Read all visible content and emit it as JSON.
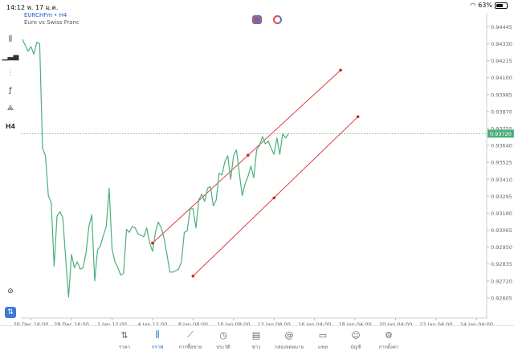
{
  "status_bar": {
    "time": "14:12",
    "date": "พ. 17 ม.ค.",
    "battery": "63%",
    "battery_level": 0.63
  },
  "header": {
    "symbol": "EURCHFm • H4",
    "description": "Euro vs Swiss Franc"
  },
  "left_toolbar": {
    "items": [
      {
        "name": "chart-type-icon",
        "glyph": "⫼"
      },
      {
        "name": "indicators-icon",
        "glyph": "▁▃▅"
      },
      {
        "name": "settings-sliders-icon",
        "glyph": "⫶"
      },
      {
        "name": "function-icon",
        "glyph": "ƒ"
      },
      {
        "name": "objects-icon",
        "glyph": "⟁"
      },
      {
        "name": "timeframe-button",
        "glyph": "H4"
      },
      {
        "name": "crosshair-search-icon",
        "glyph": "⊘"
      },
      {
        "name": "trade-icon",
        "glyph": "⇅"
      }
    ]
  },
  "chart_data": {
    "type": "line",
    "symbol": "EURCHFm",
    "timeframe": "H4",
    "line_color": "#4caf7d",
    "channel_color": "#e53935",
    "current_price": "0.93720",
    "ylim": [
      0.9249,
      0.9454
    ],
    "y_ticks": [
      "0.94445",
      "0.94330",
      "0.94215",
      "0.94100",
      "0.93985",
      "0.93870",
      "0.93755",
      "0.93640",
      "0.93525",
      "0.93410",
      "0.93295",
      "0.93180",
      "0.93065",
      "0.92950",
      "0.92835",
      "0.92720",
      "0.92605"
    ],
    "x_ticks": [
      "26 Dec 16:00",
      "28 Dec 16:00",
      "2 Jan 12:00",
      "4 Jan 12:00",
      "8 Jan 08:00",
      "10 Jan 08:00",
      "12 Jan 08:00",
      "16 Jan 04:00",
      "18 Jan 04:00",
      "20 Jan 04:00",
      "22 Jan 04:00",
      "24 Jan 04:00"
    ],
    "x_tick_bars": [
      3,
      17,
      31,
      45,
      59,
      73,
      87,
      101,
      115,
      129,
      143,
      157
    ],
    "x_range_bars": [
      -0.5,
      160.5
    ],
    "values": [
      0.9436,
      0.9432,
      0.9428,
      0.9431,
      0.9426,
      0.9434,
      0.9433,
      0.9362,
      0.9357,
      0.933,
      0.9325,
      0.9282,
      0.9316,
      0.9319,
      0.9315,
      0.9287,
      0.9261,
      0.929,
      0.9281,
      0.9285,
      0.928,
      0.9281,
      0.9291,
      0.9309,
      0.9317,
      0.9272,
      0.9293,
      0.9296,
      0.9303,
      0.9309,
      0.9335,
      0.9294,
      0.9285,
      0.9281,
      0.9276,
      0.9277,
      0.9307,
      0.9305,
      0.9309,
      0.9308,
      0.9304,
      0.9303,
      0.9302,
      0.9308,
      0.9298,
      0.9292,
      0.9305,
      0.9312,
      0.9308,
      0.9301,
      0.929,
      0.9278,
      0.9278,
      0.9279,
      0.928,
      0.9285,
      0.9305,
      0.9306,
      0.9321,
      0.9321,
      0.9308,
      0.9327,
      0.9331,
      0.9326,
      0.9335,
      0.9336,
      0.9323,
      0.9327,
      0.9345,
      0.9344,
      0.9353,
      0.9357,
      0.9341,
      0.9357,
      0.9361,
      0.9345,
      0.933,
      0.9338,
      0.9343,
      0.935,
      0.9342,
      0.9361,
      0.9364,
      0.937,
      0.9365,
      0.9367,
      0.9362,
      0.9358,
      0.9369,
      0.9358,
      0.9372,
      0.9369,
      0.9372
    ],
    "channel_lines": [
      {
        "points": [
          [
            45,
            0.92977
          ],
          [
            110,
            0.94151
          ]
        ]
      },
      {
        "points": [
          [
            59,
            0.92753
          ],
          [
            116,
            0.93835
          ]
        ]
      }
    ],
    "channel_markers": [
      [
        45,
        0.92977
      ],
      [
        78,
        0.93573
      ],
      [
        110,
        0.94151
      ],
      [
        59,
        0.92753
      ],
      [
        87,
        0.93284
      ],
      [
        116,
        0.93835
      ]
    ]
  },
  "bottom_nav": {
    "items": [
      {
        "name": "nav-quotes",
        "label": "ราคา",
        "icon": "quotes-icon",
        "glyph": "⇅",
        "active": false
      },
      {
        "name": "nav-chart",
        "label": "กราฟ",
        "icon": "chart-candles-icon",
        "glyph": "⫼",
        "active": true
      },
      {
        "name": "nav-trade",
        "label": "การซื้อขาย",
        "icon": "trade-chart-icon",
        "glyph": "⟋",
        "active": false
      },
      {
        "name": "nav-history",
        "label": "ประวัติ",
        "icon": "history-icon",
        "glyph": "◷",
        "active": false
      },
      {
        "name": "nav-news",
        "label": "ข่าว",
        "icon": "news-icon",
        "glyph": "▤",
        "active": false
      },
      {
        "name": "nav-mailbox",
        "label": "กล่องจดหมาย",
        "icon": "mail-at-icon",
        "glyph": "@",
        "active": false
      },
      {
        "name": "nav-chat",
        "label": "แชท",
        "icon": "chat-icon",
        "glyph": "▭",
        "active": false
      },
      {
        "name": "nav-account",
        "label": "บัญชี",
        "icon": "account-icon",
        "glyph": "☺",
        "active": false
      },
      {
        "name": "nav-settings",
        "label": "การตั้งค่า",
        "icon": "gear-icon",
        "glyph": "⚙",
        "active": false
      }
    ]
  }
}
